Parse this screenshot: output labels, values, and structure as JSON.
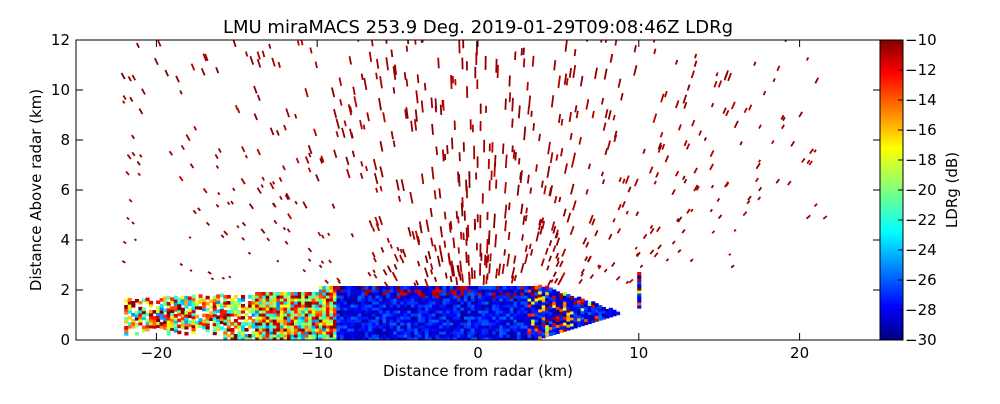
{
  "chart_data": {
    "type": "heatmap",
    "title": "LMU miraMACS 253.9 Deg. 2019-01-29T09:08:46Z  LDRg",
    "xlabel": "Distance from radar (km)",
    "ylabel": "Distance Above radar  (km)",
    "xlim": [
      -25,
      25
    ],
    "ylim": [
      0,
      12
    ],
    "x_ticks": [
      -20,
      -10,
      0,
      10,
      20
    ],
    "y_ticks": [
      0,
      2,
      4,
      6,
      8,
      10,
      12
    ],
    "x_tick_labels": [
      "−20",
      "−10",
      "0",
      "10",
      "20"
    ],
    "y_tick_labels": [
      "0",
      "2",
      "4",
      "6",
      "8",
      "10",
      "12"
    ],
    "colorbar": {
      "label": "LDRg (dB)",
      "range": [
        -30,
        -10
      ],
      "ticks": [
        -10,
        -12,
        -14,
        -16,
        -18,
        -20,
        -22,
        -24,
        -26,
        -28,
        -30
      ],
      "tick_labels": [
        "−10",
        "−12",
        "−14",
        "−16",
        "−18",
        "−20",
        "−22",
        "−24",
        "−26",
        "−28",
        "−30"
      ],
      "colormap": "jet"
    },
    "grid": false,
    "regions": [
      {
        "x_range": [
          -22,
          22
        ],
        "z_range": [
          2.2,
          12
        ],
        "ldr_value": -10.5
      },
      {
        "x_range": [
          -22,
          -9
        ],
        "z_range": [
          0.5,
          2.2
        ],
        "ldr_value": -19
      },
      {
        "x_range": [
          -9,
          10
        ],
        "z_range": [
          0,
          2.2
        ],
        "ldr_value": -28
      }
    ]
  }
}
